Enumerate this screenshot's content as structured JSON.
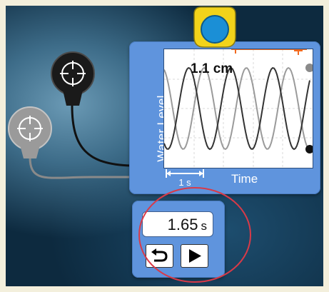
{
  "graph": {
    "y_axis_label": "Water Level",
    "x_axis_label": "Time",
    "time_scale_label": "1 s",
    "measurement_label": "1.1 cm"
  },
  "stopwatch": {
    "value": "1.65",
    "unit": "s"
  },
  "icons": [
    "detector-probe-icon",
    "tape-measure-icon",
    "reset-icon",
    "play-icon"
  ],
  "colors": {
    "panel": "#5f94dd",
    "tape_measure": "#f2d31a",
    "tape_measure_dial": "#1b8fd6",
    "probe_dark": "#1a1a1a",
    "probe_light": "#9a9a9a",
    "measure_marker": "#f06a20",
    "highlight_circle": "#d93a48"
  }
}
